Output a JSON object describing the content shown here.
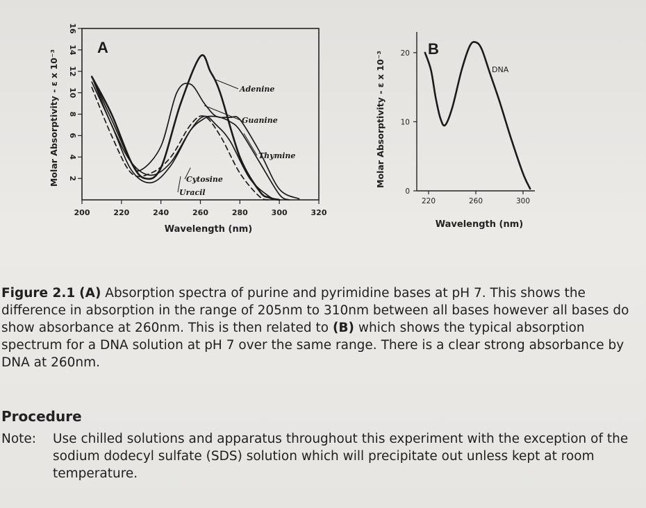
{
  "chart_data": [
    {
      "panel_label": "A",
      "type": "line",
      "xlabel": "Wavelength (nm)",
      "ylabel": "Molar Absorptivity - ε x 10⁻³",
      "xlim": [
        200,
        320
      ],
      "ylim": [
        0,
        16
      ],
      "xticks": [
        "200",
        "220",
        "240",
        "260",
        "280",
        "300",
        "320"
      ],
      "yticks": [
        "2",
        "4",
        "6",
        "8",
        "10",
        "12",
        "14",
        "16"
      ],
      "series": [
        {
          "name": "Adenine",
          "style": "solid-thick",
          "x": [
            205,
            215,
            225,
            232,
            240,
            250,
            260,
            265,
            270,
            280,
            290,
            295,
            300
          ],
          "y": [
            11.5,
            8.0,
            3.5,
            2.0,
            3.0,
            9.0,
            13.4,
            12.0,
            10.0,
            4.0,
            0.8,
            0.2,
            0.0
          ]
        },
        {
          "name": "Guanine",
          "style": "solid",
          "x": [
            205,
            215,
            225,
            230,
            240,
            248,
            255,
            262,
            268,
            275,
            280,
            290,
            300,
            310
          ],
          "y": [
            11.5,
            7.5,
            3.5,
            2.8,
            5.0,
            10.0,
            10.8,
            9.0,
            7.8,
            7.7,
            7.5,
            4.5,
            1.0,
            0.1
          ]
        },
        {
          "name": "Thymine",
          "style": "solid",
          "x": [
            205,
            215,
            225,
            235,
            245,
            255,
            262,
            265,
            270,
            275,
            280,
            290,
            300,
            305
          ],
          "y": [
            11.5,
            7.0,
            3.5,
            2.3,
            3.5,
            6.5,
            7.6,
            7.8,
            7.7,
            7.3,
            6.5,
            3.5,
            0.5,
            0.0
          ]
        },
        {
          "name": "Cytosine",
          "style": "solid",
          "x": [
            205,
            215,
            225,
            235,
            245,
            255,
            262,
            268,
            275,
            285,
            295,
            300
          ],
          "y": [
            11.0,
            7.0,
            2.8,
            1.6,
            3.2,
            6.5,
            7.8,
            7.0,
            5.5,
            2.0,
            0.3,
            0.0
          ]
        },
        {
          "name": "Uracil",
          "style": "dashed",
          "x": [
            205,
            215,
            225,
            235,
            245,
            255,
            262,
            270,
            280,
            290,
            295
          ],
          "y": [
            10.5,
            6.0,
            2.5,
            2.5,
            4.0,
            7.0,
            7.8,
            6.0,
            2.5,
            0.3,
            0.0
          ]
        }
      ]
    },
    {
      "panel_label": "B",
      "type": "line",
      "xlabel": "Wavelength (nm)",
      "ylabel": "Molar Absorptivity - ε x 10⁻³",
      "xlim": [
        210,
        310
      ],
      "ylim": [
        0,
        23
      ],
      "xticks": [
        "220",
        "260",
        "300"
      ],
      "yticks": [
        "0",
        "10",
        "20"
      ],
      "series": [
        {
          "name": "DNA",
          "style": "solid-thick",
          "x": [
            217,
            222,
            226,
            230,
            234,
            240,
            248,
            255,
            260,
            265,
            272,
            280,
            290,
            300,
            306
          ],
          "y": [
            20.0,
            17.5,
            13.5,
            10.5,
            9.5,
            12.0,
            17.5,
            21.0,
            21.5,
            20.5,
            17.0,
            13.0,
            7.5,
            2.5,
            0.3
          ]
        }
      ]
    }
  ],
  "caption": {
    "figure_label": "Figure 2.1",
    "panel_a": "(A)",
    "text_1": " Absorption spectra of purine and pyrimidine bases at pH 7. This shows the difference in absorption in the range of 205nm to 310nm between all bases however all bases do show absorbance at 260nm.  This is then related to ",
    "panel_b": "(B)",
    "text_2": " which shows the typical absorption spectrum for a DNA solution at pH 7 over the same range. There is a clear strong absorbance by DNA at 260nm."
  },
  "procedure": {
    "heading": "Procedure",
    "note_label": "Note:",
    "note_text": "Use chilled solutions and apparatus throughout this experiment with the exception of the sodium dodecyl sulfate (SDS) solution which will precipitate out unless kept at room temperature."
  }
}
